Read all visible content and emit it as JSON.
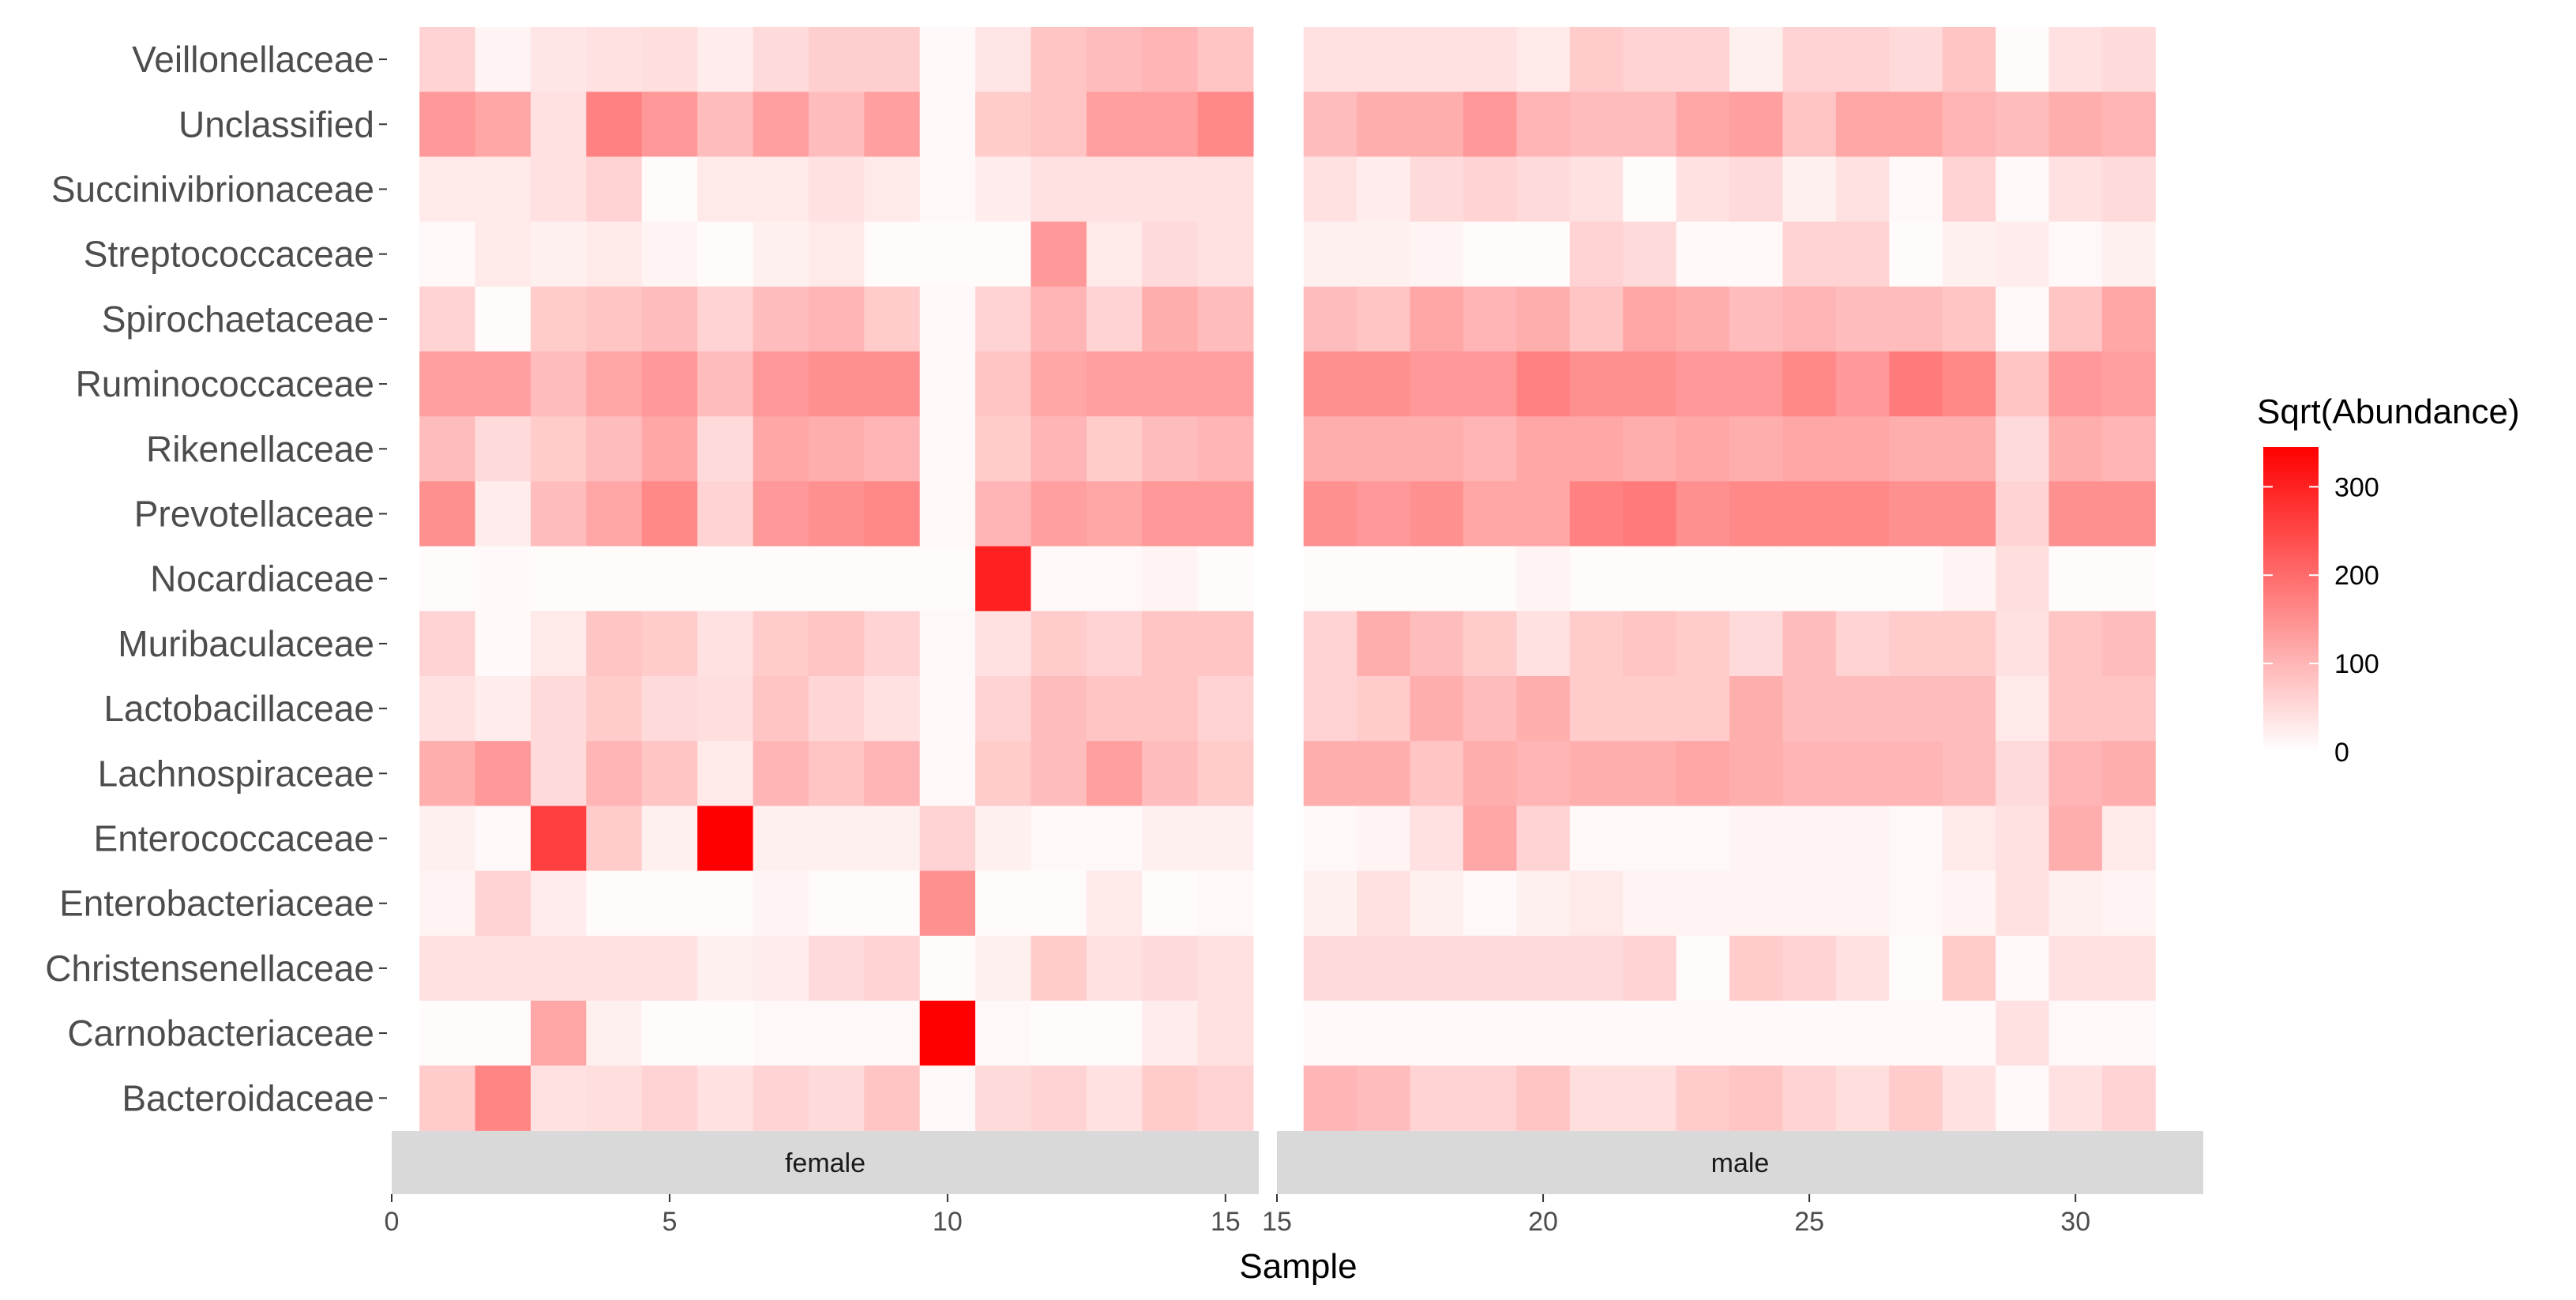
{
  "chart_data": {
    "type": "heatmap",
    "xlabel": "Sample",
    "legend": {
      "title": "Sqrt(Abundance)",
      "position": "right",
      "min": 0,
      "max": 345,
      "ticks": [
        0,
        100,
        200,
        300
      ],
      "colors": {
        "low": "#ffffff",
        "high": "#ff0000"
      }
    },
    "grid": false,
    "rows": [
      "Veillonellaceae",
      "Unclassified",
      "Succinivibrionaceae",
      "Streptococcaceae",
      "Spirochaetaceae",
      "Ruminococcaceae",
      "Rikenellaceae",
      "Prevotellaceae",
      "Nocardiaceae",
      "Muribaculaceae",
      "Lactobacillaceae",
      "Lachnospiraceae",
      "Enterococcaceae",
      "Enterobacteriaceae",
      "Christensenellaceae",
      "Carnobacteriaceae",
      "Bacteroidaceae"
    ],
    "panels": [
      {
        "label": "female",
        "xlim": [
          0,
          15.6
        ],
        "x_ticks": [
          0,
          5,
          10,
          15
        ],
        "x": [
          1,
          2,
          3,
          4,
          5,
          6,
          7,
          8,
          9,
          10,
          11,
          12,
          13,
          14,
          15
        ],
        "values": [
          [
            60,
            15,
            35,
            40,
            45,
            25,
            50,
            65,
            65,
            10,
            35,
            80,
            90,
            100,
            80
          ],
          [
            140,
            120,
            40,
            170,
            140,
            90,
            130,
            90,
            130,
            10,
            70,
            80,
            130,
            130,
            160
          ],
          [
            30,
            30,
            40,
            60,
            5,
            30,
            30,
            40,
            30,
            10,
            25,
            40,
            40,
            40,
            40
          ],
          [
            10,
            30,
            20,
            30,
            15,
            5,
            20,
            30,
            5,
            5,
            5,
            140,
            30,
            50,
            40
          ],
          [
            60,
            5,
            70,
            80,
            90,
            60,
            90,
            100,
            70,
            10,
            60,
            100,
            60,
            110,
            90
          ],
          [
            130,
            130,
            90,
            120,
            140,
            90,
            140,
            150,
            150,
            10,
            80,
            120,
            130,
            130,
            130
          ],
          [
            90,
            50,
            70,
            90,
            120,
            50,
            120,
            110,
            100,
            10,
            70,
            100,
            70,
            90,
            100
          ],
          [
            150,
            25,
            90,
            120,
            160,
            60,
            140,
            150,
            160,
            10,
            100,
            130,
            120,
            140,
            140
          ],
          [
            5,
            8,
            5,
            5,
            5,
            5,
            5,
            5,
            5,
            5,
            300,
            10,
            10,
            15,
            5
          ],
          [
            60,
            8,
            30,
            80,
            70,
            40,
            70,
            80,
            60,
            10,
            40,
            70,
            60,
            80,
            80
          ],
          [
            40,
            25,
            50,
            70,
            50,
            45,
            80,
            55,
            40,
            10,
            60,
            90,
            80,
            80,
            60
          ],
          [
            110,
            140,
            50,
            100,
            80,
            30,
            100,
            80,
            100,
            10,
            70,
            90,
            130,
            90,
            70
          ],
          [
            20,
            10,
            260,
            70,
            20,
            345,
            20,
            20,
            20,
            60,
            20,
            10,
            10,
            20,
            20
          ],
          [
            15,
            60,
            25,
            5,
            5,
            5,
            15,
            5,
            5,
            150,
            5,
            5,
            30,
            5,
            10
          ],
          [
            40,
            40,
            40,
            40,
            40,
            20,
            25,
            50,
            60,
            5,
            20,
            70,
            40,
            50,
            40
          ],
          [
            5,
            5,
            120,
            20,
            5,
            5,
            10,
            10,
            10,
            345,
            10,
            5,
            5,
            25,
            40
          ],
          [
            70,
            165,
            40,
            45,
            60,
            40,
            60,
            50,
            80,
            10,
            50,
            60,
            40,
            70,
            60
          ]
        ]
      },
      {
        "label": "male",
        "xlim": [
          15,
          32.4
        ],
        "x_ticks": [
          15,
          20,
          25,
          30
        ],
        "x": [
          16,
          17,
          18,
          19,
          20,
          21,
          22,
          23,
          24,
          25,
          26,
          27,
          28,
          29,
          30,
          31
        ],
        "values": [
          [
            40,
            40,
            40,
            40,
            30,
            70,
            60,
            60,
            20,
            60,
            60,
            50,
            80,
            5,
            40,
            50
          ],
          [
            90,
            110,
            110,
            140,
            100,
            90,
            90,
            120,
            130,
            80,
            120,
            120,
            100,
            90,
            110,
            100
          ],
          [
            40,
            25,
            50,
            60,
            50,
            40,
            5,
            40,
            50,
            20,
            40,
            10,
            60,
            10,
            40,
            50
          ],
          [
            20,
            20,
            15,
            5,
            5,
            60,
            50,
            10,
            10,
            60,
            60,
            5,
            20,
            25,
            10,
            20
          ],
          [
            90,
            80,
            120,
            100,
            110,
            80,
            120,
            110,
            90,
            100,
            90,
            90,
            80,
            10,
            80,
            120
          ],
          [
            150,
            150,
            140,
            140,
            170,
            150,
            150,
            140,
            140,
            160,
            140,
            180,
            160,
            80,
            140,
            130
          ],
          [
            110,
            110,
            110,
            100,
            120,
            120,
            110,
            120,
            110,
            120,
            120,
            110,
            110,
            50,
            110,
            100
          ],
          [
            150,
            140,
            150,
            120,
            120,
            170,
            180,
            150,
            160,
            160,
            160,
            150,
            150,
            60,
            150,
            150
          ],
          [
            5,
            5,
            5,
            5,
            15,
            5,
            5,
            5,
            5,
            5,
            5,
            5,
            15,
            45,
            5,
            5
          ],
          [
            60,
            110,
            90,
            70,
            40,
            70,
            80,
            70,
            50,
            90,
            60,
            70,
            70,
            40,
            80,
            90
          ],
          [
            60,
            70,
            110,
            90,
            110,
            70,
            70,
            70,
            110,
            90,
            90,
            90,
            90,
            30,
            80,
            80
          ],
          [
            110,
            110,
            80,
            110,
            100,
            110,
            110,
            120,
            110,
            100,
            100,
            100,
            90,
            50,
            100,
            110
          ],
          [
            10,
            15,
            40,
            120,
            60,
            10,
            10,
            10,
            15,
            15,
            15,
            10,
            30,
            40,
            110,
            30
          ],
          [
            20,
            40,
            20,
            10,
            20,
            30,
            15,
            15,
            15,
            15,
            15,
            10,
            15,
            40,
            20,
            15
          ],
          [
            50,
            50,
            50,
            50,
            50,
            50,
            60,
            5,
            70,
            60,
            40,
            5,
            70,
            10,
            40,
            40
          ],
          [
            8,
            8,
            8,
            8,
            8,
            8,
            8,
            8,
            8,
            8,
            8,
            8,
            8,
            40,
            10,
            10
          ],
          [
            100,
            90,
            60,
            60,
            80,
            45,
            45,
            70,
            80,
            60,
            45,
            70,
            40,
            10,
            40,
            60
          ]
        ]
      }
    ]
  }
}
